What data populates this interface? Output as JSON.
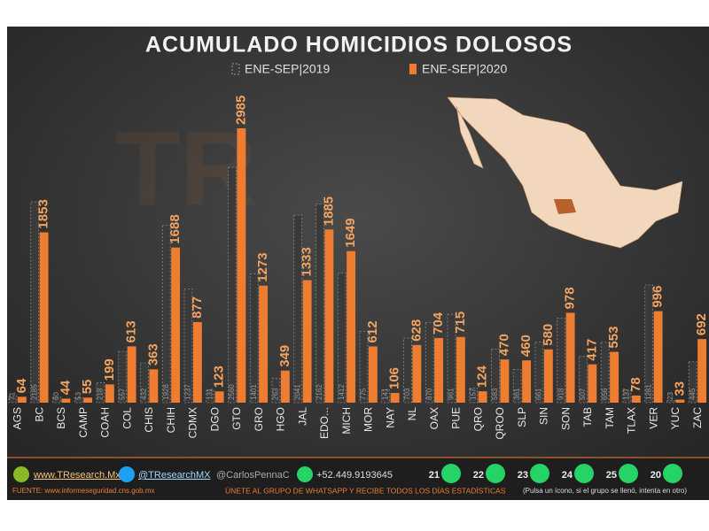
{
  "chart_data": {
    "type": "bar",
    "title": "ACUMULADO HOMICIDIOS DOLOSOS",
    "categories": [
      "AGS",
      "BC",
      "BCS",
      "CAMP",
      "COAH",
      "COL",
      "CHIS",
      "CHIH",
      "CDMX",
      "DGO",
      "GTO",
      "GRO",
      "HGO",
      "JAL",
      "EDO...",
      "MICH",
      "MOR",
      "NAY",
      "NL",
      "OAX",
      "PUE",
      "QRO",
      "QROO",
      "SLP",
      "SIN",
      "SON",
      "TAB",
      "TAM",
      "TLAX",
      "VER",
      "YUC",
      "ZAC"
    ],
    "series": [
      {
        "name": "ENE-SEP|2019",
        "color": "#3a3a3a",
        "values": [
          71,
          2185,
          60,
          53,
          218,
          557,
          432,
          1928,
          1237,
          131,
          2560,
          1401,
          263,
          2041,
          2162,
          1412,
          775,
          141,
          703,
          870,
          961,
          157,
          583,
          361,
          661,
          918,
          507,
          656,
          137,
          1281,
          23,
          445
        ]
      },
      {
        "name": "ENE-SEP|2020",
        "color": "#ee7d31",
        "values": [
          64,
          1853,
          44,
          55,
          199,
          613,
          363,
          1688,
          877,
          123,
          2985,
          1273,
          349,
          1333,
          1885,
          1649,
          612,
          106,
          628,
          704,
          715,
          124,
          470,
          460,
          580,
          978,
          417,
          553,
          78,
          996,
          33,
          692
        ]
      }
    ]
  },
  "footer": {
    "website": "www.TResearch.Mx",
    "twitter": "@TResearchMX",
    "twitter2": "@CarlosPennaC",
    "phone": "+52.449.9193645",
    "groups": [
      "21",
      "22",
      "23",
      "24",
      "25",
      "20"
    ],
    "source": "FUENTE: www.informeseguridad.cns.gob.mx",
    "cta": "ÚNETE AL GRUPO DE WHATSAPP Y RECIBE TODOS LOS DÍAS ESTADÍSTICAS",
    "note": "(Pulsa un ícono, si el grupo se llenó, intenta en otro)"
  }
}
